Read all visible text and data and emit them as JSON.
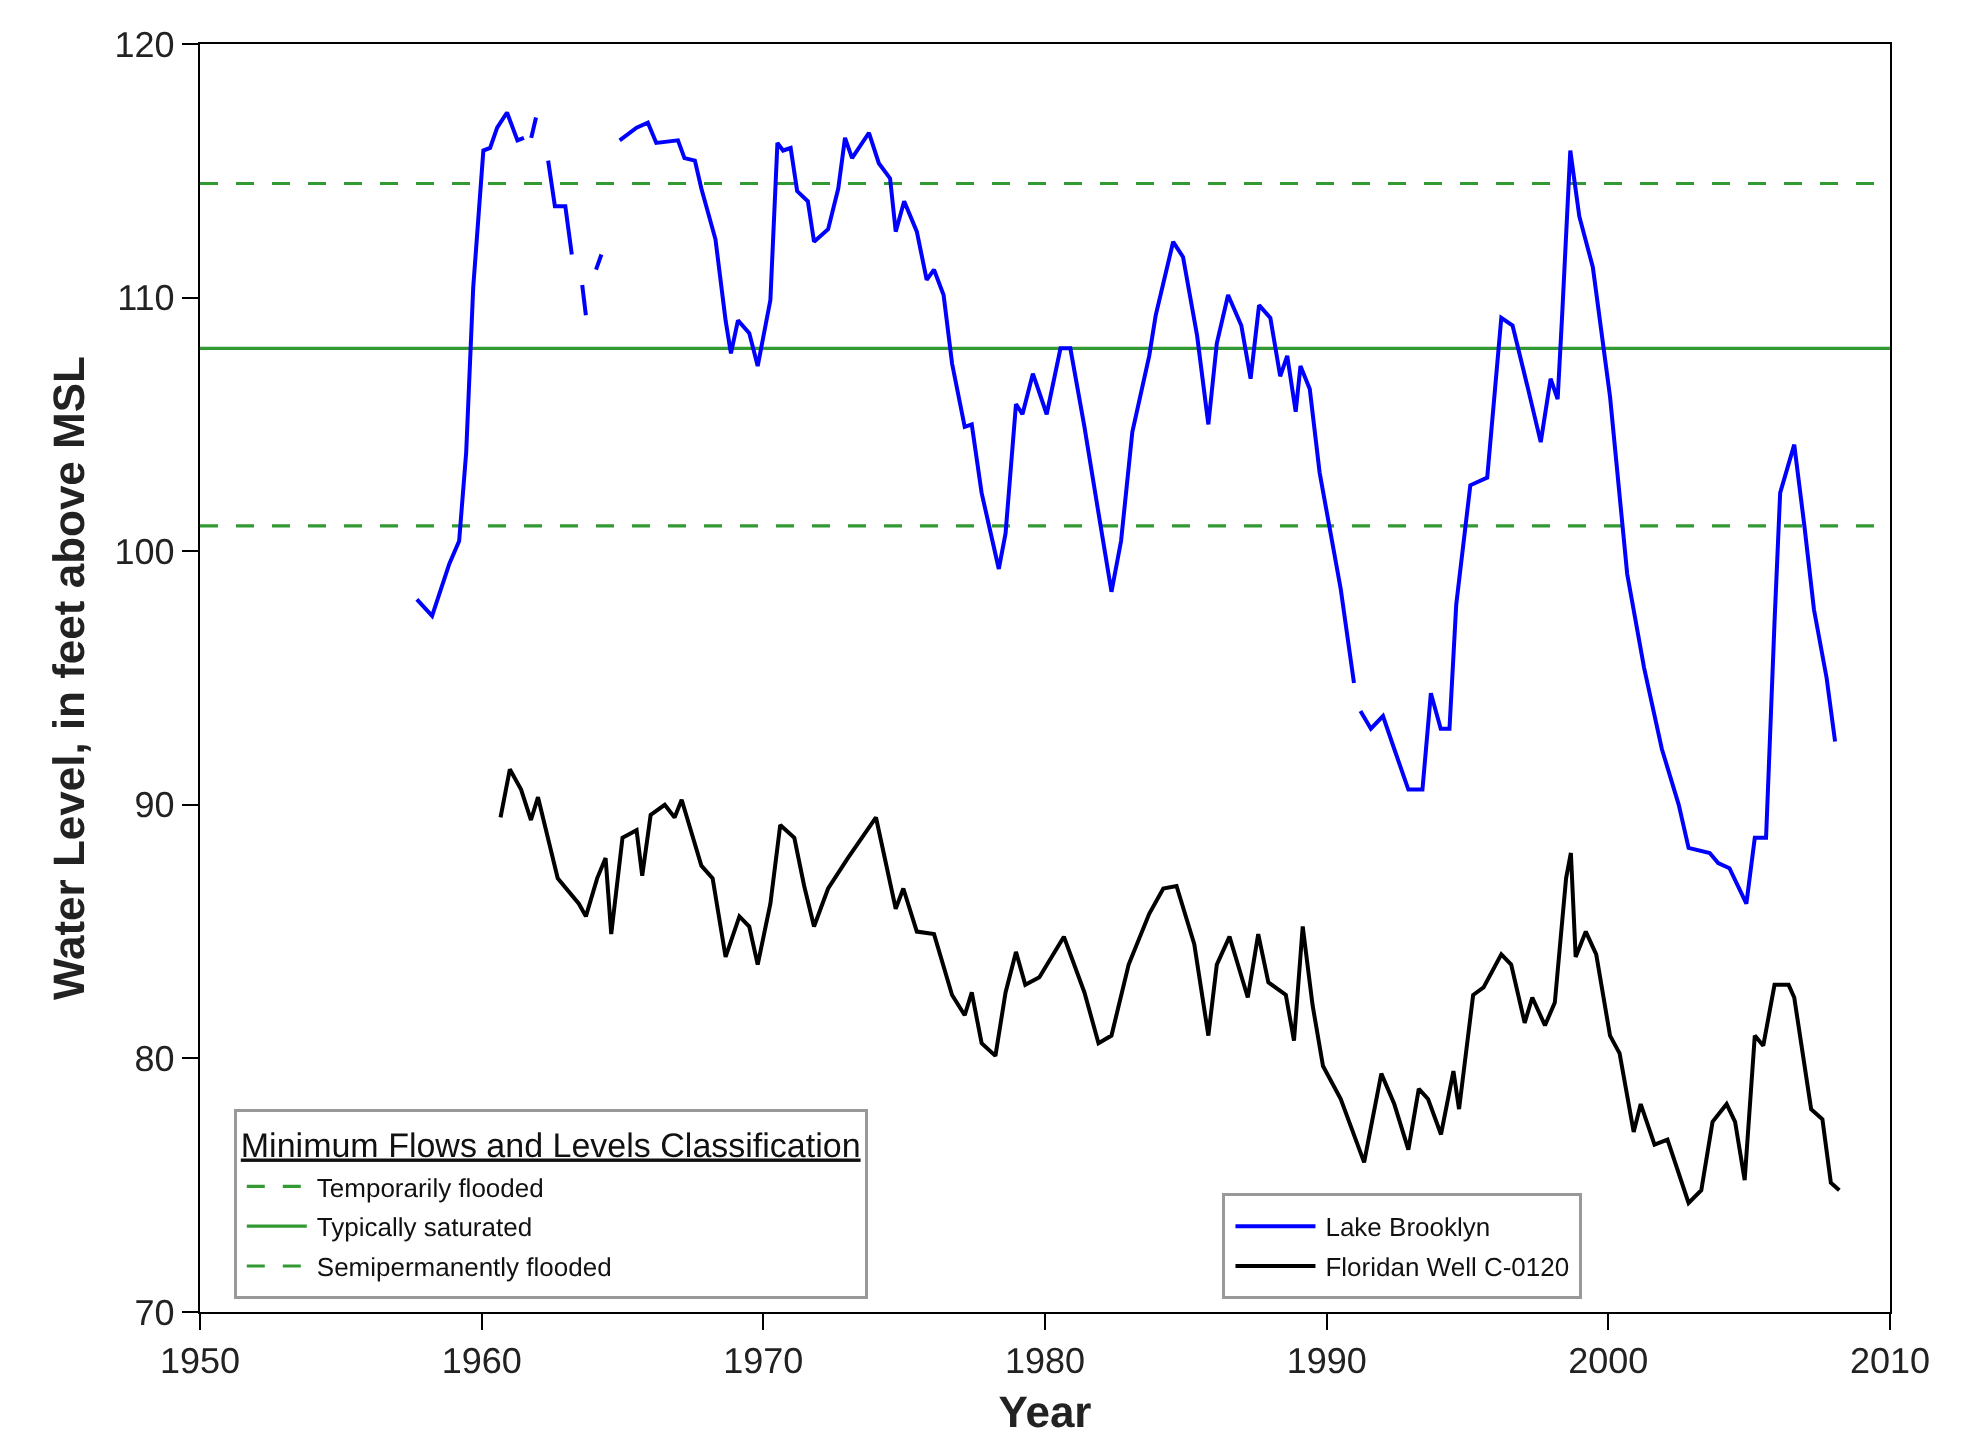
{
  "chart_data": {
    "type": "line",
    "xlabel": "Year",
    "ylabel": "Water Level, in feet above MSL",
    "legend_title": "Minimum Flows and Levels Classification",
    "xlim": [
      1950,
      2010
    ],
    "xticks": [
      1950,
      1960,
      1970,
      1980,
      1990,
      2000,
      2010
    ],
    "ylim": [
      70,
      120
    ],
    "yticks": [
      70,
      80,
      90,
      100,
      110,
      120
    ],
    "grid": false,
    "legend": "bottom",
    "marker": "none",
    "line_style": "solid",
    "ref_lines": [
      {
        "axis": "y",
        "value": 114.5,
        "label": "Temporarily flooded",
        "color": "#339933",
        "line_style": "dashed"
      },
      {
        "axis": "y",
        "value": 108,
        "label": "Typically saturated",
        "color": "#339933",
        "line_style": "solid"
      },
      {
        "axis": "y",
        "value": 101,
        "label": "Semipermanently flooded",
        "color": "#339933",
        "line_style": "dashed"
      }
    ],
    "series": [
      {
        "name": "Lake Brooklyn",
        "color": "#0000ff",
        "x": [
          1957.7,
          1958.24,
          1958.85,
          1959.2,
          1959.45,
          1959.7,
          1960.06,
          1960.3,
          1960.55,
          1960.9,
          1961.27,
          1961.5,
          1961.6,
          1961.76,
          1961.93,
          1962.1,
          1962.36,
          1962.6,
          1962.97,
          1963.2,
          1963.4,
          1963.57,
          1963.7,
          1963.9,
          1964.06,
          1964.25,
          1964.5,
          1964.9,
          1965.5,
          1965.9,
          1966.2,
          1966.97,
          1967.2,
          1967.57,
          1967.8,
          1968.3,
          1968.66,
          1968.85,
          1969.1,
          1969.5,
          1969.8,
          1970.25,
          1970.5,
          1970.7,
          1970.97,
          1971.2,
          1971.58,
          1971.8,
          1972.3,
          1972.66,
          1972.9,
          1973.15,
          1973.75,
          1974.1,
          1974.5,
          1974.7,
          1975.0,
          1975.45,
          1975.8,
          1976.06,
          1976.4,
          1976.7,
          1977.15,
          1977.4,
          1977.75,
          1978.36,
          1978.6,
          1978.97,
          1979.2,
          1979.57,
          1980.06,
          1980.55,
          1980.9,
          1981.4,
          1981.9,
          1982.36,
          1982.7,
          1983.1,
          1983.7,
          1983.93,
          1984.55,
          1984.9,
          1985.4,
          1985.8,
          1986.1,
          1986.5,
          1986.97,
          1987.3,
          1987.6,
          1988.0,
          1988.35,
          1988.6,
          1988.9,
          1989.07,
          1989.4,
          1989.75,
          1990.5,
          1990.97,
          1991.1,
          1991.2,
          1991.57,
          1992.0,
          1992.4,
          1992.9,
          1993.4,
          1993.7,
          1994.05,
          1994.36,
          1994.6,
          1995.1,
          1995.7,
          1996.2,
          1996.6,
          1997.15,
          1997.6,
          1997.95,
          1998.2,
          1998.36,
          1998.65,
          1998.97,
          1999.45,
          2000.06,
          2000.67,
          2001.27,
          2001.9,
          2002.5,
          2002.85,
          2003.6,
          2003.9,
          2004.3,
          2004.9,
          2005.2,
          2005.6,
          2005.9,
          2006.1,
          2006.6,
          2006.96,
          2007.3,
          2007.75,
          2008.05
        ],
        "values": [
          98.1,
          97.45,
          99.5,
          100.4,
          103.9,
          110.4,
          115.8,
          115.9,
          116.7,
          117.3,
          116.2,
          116.3,
          null,
          116.3,
          117.1,
          null,
          115.4,
          113.6,
          113.6,
          111.7,
          null,
          110.5,
          109.3,
          null,
          111.1,
          111.7,
          null,
          116.2,
          116.7,
          116.9,
          116.1,
          116.2,
          115.5,
          115.4,
          114.3,
          112.3,
          109.1,
          107.8,
          109.1,
          108.6,
          107.3,
          109.9,
          116.1,
          115.8,
          115.9,
          114.2,
          113.8,
          112.2,
          112.7,
          114.3,
          116.3,
          115.5,
          116.5,
          115.3,
          114.7,
          112.6,
          113.8,
          112.6,
          110.7,
          111.1,
          110.1,
          107.4,
          104.9,
          105.0,
          102.3,
          99.3,
          100.7,
          105.8,
          105.4,
          107.0,
          105.4,
          108.0,
          108.0,
          104.9,
          101.5,
          98.4,
          100.4,
          104.7,
          107.7,
          109.3,
          112.2,
          111.6,
          108.5,
          105.0,
          108.2,
          110.1,
          108.9,
          106.8,
          109.7,
          109.2,
          106.9,
          107.7,
          105.5,
          107.3,
          106.4,
          103.1,
          98.5,
          94.8,
          null,
          93.7,
          93.0,
          93.5,
          92.2,
          90.6,
          90.6,
          94.4,
          93.0,
          93.0,
          97.9,
          102.6,
          102.9,
          109.2,
          108.9,
          106.4,
          104.3,
          106.8,
          106.0,
          109.3,
          115.8,
          113.2,
          111.2,
          106.1,
          99.1,
          95.4,
          92.2,
          90.0,
          88.3,
          88.1,
          87.7,
          87.5,
          86.1,
          88.7,
          88.7,
          97.2,
          102.3,
          104.2,
          101.0,
          97.7,
          95.0,
          92.5
        ]
      },
      {
        "name": "Floridan Well C-0120",
        "color": "#000000",
        "x": [
          1960.67,
          1961.0,
          1961.4,
          1961.75,
          1962.0,
          1962.7,
          1963.45,
          1963.7,
          1964.1,
          1964.4,
          1964.6,
          1965.0,
          1965.5,
          1965.7,
          1966.0,
          1966.5,
          1966.85,
          1967.1,
          1967.8,
          1968.2,
          1968.66,
          1969.15,
          1969.5,
          1969.8,
          1970.25,
          1970.6,
          1971.1,
          1971.45,
          1971.8,
          1972.3,
          1973.0,
          1974.0,
          1974.7,
          1974.97,
          1975.45,
          1976.06,
          1976.7,
          1977.15,
          1977.4,
          1977.75,
          1978.24,
          1978.6,
          1978.97,
          1979.3,
          1979.8,
          1980.67,
          1981.4,
          1981.9,
          1982.36,
          1982.97,
          1983.7,
          1984.2,
          1984.67,
          1985.3,
          1985.8,
          1986.1,
          1986.55,
          1987.2,
          1987.57,
          1987.93,
          1988.55,
          1988.84,
          1989.15,
          1989.5,
          1989.87,
          1990.5,
          1991.33,
          1991.94,
          1992.4,
          1992.9,
          1993.27,
          1993.6,
          1994.06,
          1994.5,
          1994.7,
          1995.2,
          1995.57,
          1996.2,
          1996.55,
          1997.03,
          1997.3,
          1997.75,
          1998.1,
          1998.5,
          1998.67,
          1998.84,
          1999.2,
          1999.57,
          2000.06,
          2000.4,
          2000.9,
          2001.15,
          2001.64,
          2002.1,
          2002.85,
          2003.3,
          2003.7,
          2004.2,
          2004.5,
          2004.84,
          2005.2,
          2005.5,
          2005.9,
          2006.4,
          2006.6,
          2007.2,
          2007.6,
          2007.9,
          2008.2
        ],
        "values": [
          89.5,
          91.4,
          90.6,
          89.4,
          90.3,
          87.1,
          86.1,
          85.6,
          87.1,
          87.9,
          84.9,
          88.7,
          89.0,
          87.2,
          89.6,
          90.0,
          89.5,
          90.2,
          87.6,
          87.1,
          84.0,
          85.6,
          85.2,
          83.7,
          86.1,
          89.2,
          88.7,
          86.8,
          85.2,
          86.7,
          87.9,
          89.5,
          85.9,
          86.7,
          85.0,
          84.9,
          82.5,
          81.7,
          82.6,
          80.6,
          80.1,
          82.6,
          84.2,
          82.9,
          83.2,
          84.8,
          82.6,
          80.6,
          80.9,
          83.7,
          85.7,
          86.7,
          86.8,
          84.5,
          80.9,
          83.7,
          84.8,
          82.4,
          84.9,
          83.0,
          82.5,
          80.7,
          85.2,
          82.1,
          79.7,
          78.4,
          75.9,
          79.4,
          78.2,
          76.4,
          78.8,
          78.4,
          77.0,
          79.5,
          78.0,
          82.5,
          82.8,
          84.1,
          83.7,
          81.4,
          82.4,
          81.3,
          82.2,
          87.1,
          88.1,
          84.0,
          85.0,
          84.1,
          80.9,
          80.2,
          77.1,
          78.2,
          76.6,
          76.8,
          74.3,
          74.8,
          77.5,
          78.2,
          77.5,
          75.2,
          80.9,
          80.5,
          82.9,
          82.9,
          82.4,
          78.0,
          77.6,
          75.1,
          74.8
        ]
      }
    ]
  }
}
